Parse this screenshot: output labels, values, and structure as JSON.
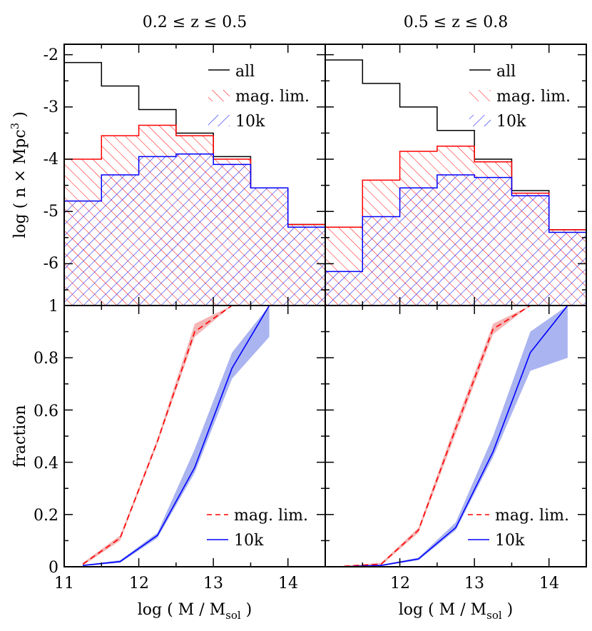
{
  "figure": {
    "panel_titles": [
      "0.2 ≤ z ≤ 0.5",
      "0.5 ≤ z ≤ 0.8"
    ]
  },
  "colors": {
    "all": "#000000",
    "maglim": "#ff0000",
    "tenk": "#0000ff",
    "maglim_band": "#f4b6b6",
    "tenk_band": "#aab4f0"
  },
  "axes": {
    "top_ylabel_main": "log ( n × Mpc",
    "top_ylabel_sup": "3",
    "top_ylabel_end": " )",
    "bottom_ylabel": "fraction",
    "xlabel_main": "log ( M / M",
    "xlabel_sub": "sol",
    "xlabel_end": " )",
    "top_ytick_labels": [
      "-2",
      "-3",
      "-4",
      "-5",
      "-6"
    ],
    "bottom_ytick_labels": [
      "1",
      "0.8",
      "0.6",
      "0.4",
      "0.2",
      "0"
    ],
    "xtick_labels_left": [
      "11",
      "12",
      "13",
      "14"
    ],
    "xtick_labels_right": [
      "12",
      "13",
      "14"
    ]
  },
  "legends": {
    "top": [
      "all",
      "mag. lim.",
      "10k"
    ],
    "bottom": [
      "mag. lim.",
      "10k"
    ]
  },
  "chart_data": [
    {
      "type": "bar",
      "style": "step-histogram",
      "panel": "top-left",
      "title": "0.2 ≤ z ≤ 0.5",
      "ylabel": "log ( n × Mpc^3 )",
      "xlim": [
        11,
        14.5
      ],
      "ylim": [
        -6.8,
        -1.8
      ],
      "bin_edges": [
        11,
        11.5,
        12,
        12.5,
        13,
        13.5,
        14,
        14.5
      ],
      "series": [
        {
          "name": "all",
          "values": [
            -2.15,
            -2.6,
            -3.05,
            -3.5,
            -3.95,
            -4.55,
            -5.25
          ]
        },
        {
          "name": "mag. lim.",
          "values": [
            -4.0,
            -3.55,
            -3.35,
            -3.55,
            -4.0,
            -4.55,
            -5.25
          ]
        },
        {
          "name": "10k",
          "values": [
            -4.8,
            -4.3,
            -3.95,
            -3.9,
            -4.1,
            -4.55,
            -5.3
          ]
        }
      ]
    },
    {
      "type": "bar",
      "style": "step-histogram",
      "panel": "top-right",
      "title": "0.5 ≤ z ≤ 0.8",
      "xlim": [
        11,
        14.5
      ],
      "ylim": [
        -6.8,
        -1.8
      ],
      "bin_edges": [
        11,
        11.5,
        12,
        12.5,
        13,
        13.5,
        14,
        14.5
      ],
      "series": [
        {
          "name": "all",
          "values": [
            -2.1,
            -2.55,
            -3.0,
            -3.45,
            -4.0,
            -4.6,
            -5.35
          ]
        },
        {
          "name": "mag. lim.",
          "values": [
            -5.3,
            -4.4,
            -3.85,
            -3.75,
            -4.05,
            -4.65,
            -5.35
          ]
        },
        {
          "name": "10k",
          "values": [
            -6.15,
            -5.1,
            -4.55,
            -4.3,
            -4.35,
            -4.7,
            -5.4
          ]
        }
      ]
    },
    {
      "type": "line",
      "panel": "bottom-left",
      "xlabel": "log ( M / M_sol )",
      "ylabel": "fraction",
      "xlim": [
        11,
        14.5
      ],
      "ylim": [
        0,
        1
      ],
      "series": [
        {
          "name": "mag. lim.",
          "style": "dashed",
          "x": [
            11.25,
            11.75,
            12.25,
            12.75,
            13.25
          ],
          "y": [
            0.01,
            0.11,
            0.48,
            0.9,
            1.0
          ],
          "band_low": [
            0.005,
            0.1,
            0.47,
            0.88,
            1.0
          ],
          "band_high": [
            0.015,
            0.12,
            0.49,
            0.93,
            1.0
          ]
        },
        {
          "name": "10k",
          "style": "solid",
          "x": [
            11.25,
            11.75,
            12.25,
            12.75,
            13.25,
            13.75
          ],
          "y": [
            0.005,
            0.02,
            0.12,
            0.38,
            0.76,
            1.0
          ],
          "band_low": [
            0.003,
            0.015,
            0.11,
            0.36,
            0.72,
            0.88
          ],
          "band_high": [
            0.007,
            0.025,
            0.13,
            0.45,
            0.82,
            1.0
          ]
        }
      ]
    },
    {
      "type": "line",
      "panel": "bottom-right",
      "xlabel": "log ( M / M_sol )",
      "xlim": [
        11,
        14.5
      ],
      "ylim": [
        0,
        1
      ],
      "series": [
        {
          "name": "mag. lim.",
          "style": "dashed",
          "x": [
            11.25,
            11.75,
            12.25,
            12.75,
            13.25,
            13.75
          ],
          "y": [
            0.002,
            0.01,
            0.14,
            0.53,
            0.91,
            1.0
          ],
          "band_low": [
            0.0,
            0.005,
            0.13,
            0.51,
            0.89,
            1.0
          ],
          "band_high": [
            0.004,
            0.015,
            0.15,
            0.55,
            0.93,
            1.0
          ]
        },
        {
          "name": "10k",
          "style": "solid",
          "x": [
            11.25,
            11.75,
            12.25,
            12.75,
            13.25,
            13.75,
            14.25
          ],
          "y": [
            0.0,
            0.005,
            0.03,
            0.15,
            0.44,
            0.82,
            1.0
          ],
          "band_low": [
            0.0,
            0.003,
            0.025,
            0.14,
            0.42,
            0.75,
            0.8
          ],
          "band_high": [
            0.002,
            0.008,
            0.035,
            0.17,
            0.5,
            0.9,
            1.0
          ]
        }
      ]
    }
  ]
}
